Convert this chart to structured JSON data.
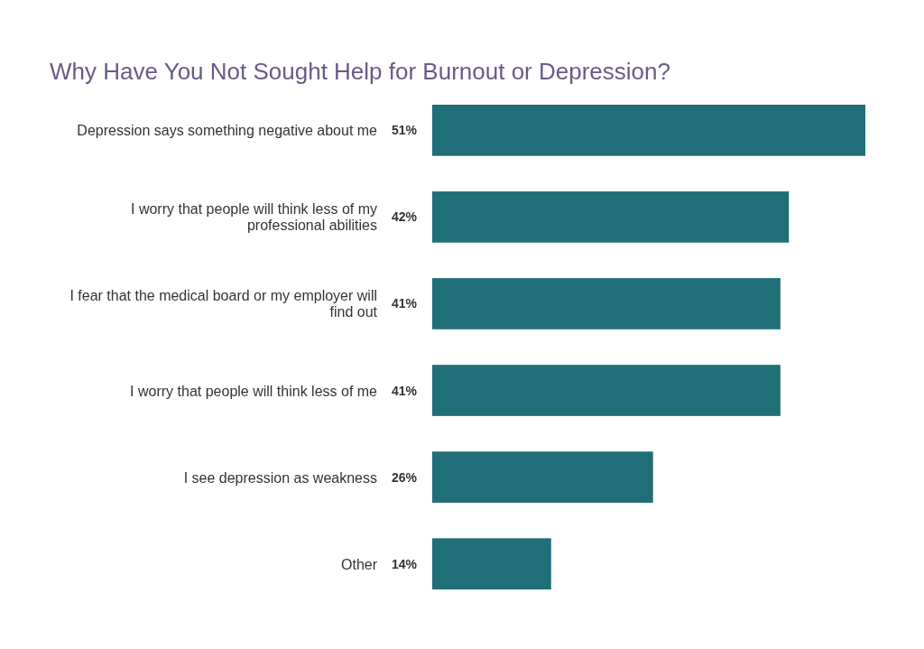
{
  "chart_data": {
    "type": "bar",
    "orientation": "horizontal",
    "title": "Why Have You Not Sought Help for Burnout or Depression?",
    "categories": [
      "Depression says something negative about me",
      "I worry that people will think less of my professional abilities",
      "I fear that the medical board or my employer will find out",
      "I worry that people will think less of me",
      "I see depression as weakness",
      "Other"
    ],
    "values": [
      51,
      42,
      41,
      41,
      26,
      14
    ],
    "value_labels": [
      "51%",
      "42%",
      "41%",
      "41%",
      "26%",
      "14%"
    ],
    "color": "#1f6e78"
  }
}
